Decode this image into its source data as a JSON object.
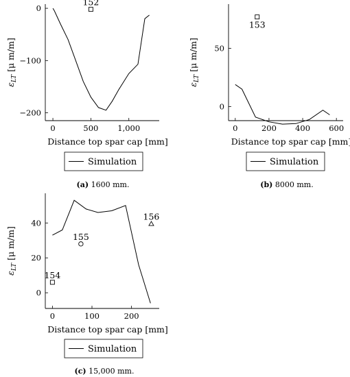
{
  "chart_data": [
    {
      "type": "line",
      "caption_prefix": "(a)",
      "caption_text": " 1600 mm.",
      "xlabel": "Distance top spar cap [mm]",
      "ylabel": "ε_LT [μ m/m]",
      "xlim": [
        -100,
        1400
      ],
      "ylim": [
        -215,
        8
      ],
      "xticks": [
        0,
        500,
        1000
      ],
      "xtick_labels": [
        "0",
        "500",
        "1,000"
      ],
      "yticks": [
        0,
        -100,
        -200
      ],
      "ytick_labels": [
        "0",
        "−100",
        "−200"
      ],
      "legend_position": "bottom",
      "series": [
        {
          "name": "Simulation",
          "x": [
            0,
            20,
            100,
            200,
            300,
            400,
            500,
            600,
            700,
            780,
            870,
            1000,
            1120,
            1210,
            1270
          ],
          "y": [
            0,
            -5,
            -30,
            -60,
            -100,
            -140,
            -170,
            -190,
            -195,
            -178,
            -155,
            -125,
            -107,
            -20,
            -13
          ]
        }
      ],
      "markers": [
        {
          "label": "152",
          "shape": "square",
          "x": 500,
          "y": -2
        }
      ]
    },
    {
      "type": "line",
      "caption_prefix": "(b)",
      "caption_text": " 8000 mm.",
      "xlabel": "Distance top spar cap [mm]",
      "ylabel": "ε_LT [μ m/m]",
      "xlim": [
        -40,
        640
      ],
      "ylim": [
        -12,
        88
      ],
      "xticks": [
        0,
        200,
        400,
        600
      ],
      "xtick_labels": [
        "0",
        "200",
        "400",
        "600"
      ],
      "yticks": [
        0,
        50
      ],
      "ytick_labels": [
        "0",
        "50"
      ],
      "legend_position": "bottom",
      "series": [
        {
          "name": "Simulation",
          "x": [
            0,
            40,
            120,
            200,
            280,
            360,
            440,
            520,
            560
          ],
          "y": [
            19,
            15,
            -9,
            -13,
            -15,
            -14.5,
            -11,
            -3,
            -7
          ]
        }
      ],
      "markers": [
        {
          "label": "153",
          "shape": "square",
          "x": 130,
          "y": 77
        }
      ]
    },
    {
      "type": "line",
      "caption_prefix": "(c)",
      "caption_text": " 15,000 mm.",
      "xlabel": "Distance top spar cap [mm]",
      "ylabel": "ε_LT [μ m/m]",
      "xlim": [
        -18,
        270
      ],
      "ylim": [
        -9,
        57
      ],
      "xticks": [
        0,
        100,
        200
      ],
      "xtick_labels": [
        "0",
        "100",
        "200"
      ],
      "yticks": [
        0,
        20,
        40
      ],
      "ytick_labels": [
        "0",
        "20",
        "40"
      ],
      "legend_position": "bottom",
      "series": [
        {
          "name": "Simulation",
          "x": [
            0,
            25,
            55,
            85,
            115,
            150,
            185,
            218,
            248
          ],
          "y": [
            33,
            36,
            53,
            48,
            46,
            47,
            50,
            16,
            -6
          ]
        }
      ],
      "markers": [
        {
          "label": "154",
          "shape": "square",
          "x": 0,
          "y": 6
        },
        {
          "label": "155",
          "shape": "circle",
          "x": 72,
          "y": 28
        },
        {
          "label": "156",
          "shape": "triangle",
          "x": 250,
          "y": 39.5
        }
      ]
    }
  ]
}
